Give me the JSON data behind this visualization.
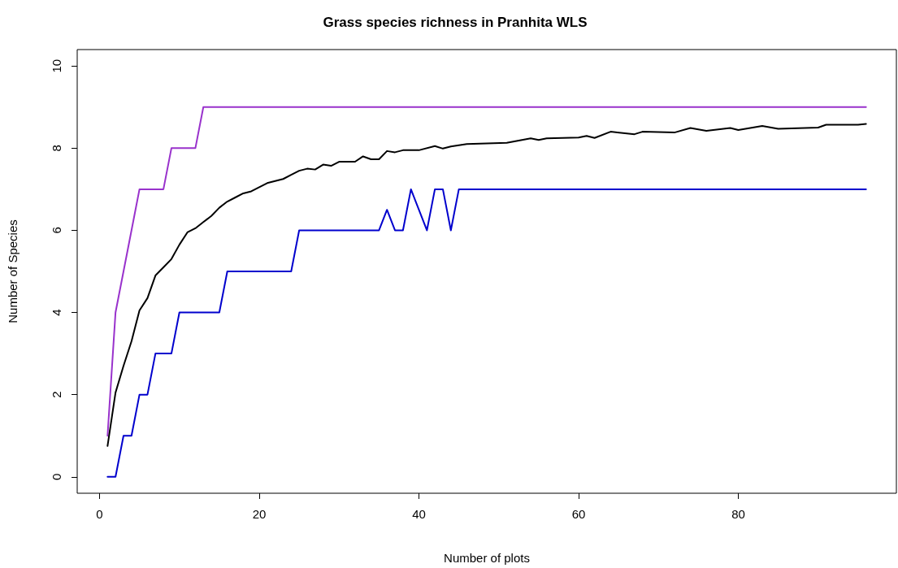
{
  "chart_data": {
    "type": "line",
    "title": "Grass species richness in Pranhita WLS",
    "xlabel": "Number of plots",
    "ylabel": "Number of Species",
    "xlim": [
      -2.8,
      99.8
    ],
    "xticks": [
      0,
      20,
      40,
      60,
      80
    ],
    "ylim": [
      -0.4,
      10.4
    ],
    "yticks": [
      0,
      2,
      4,
      6,
      8,
      10
    ],
    "grid": false,
    "marker": "none",
    "line_style": "solid",
    "series": [
      {
        "color": "#9932cc",
        "x": [
          1,
          2,
          3,
          4,
          5,
          8,
          9,
          12,
          13,
          96
        ],
        "values": [
          1,
          4,
          5,
          6,
          7,
          7,
          8,
          8,
          9,
          9
        ]
      },
      {
        "color": "#000000",
        "x": [
          1,
          2,
          3,
          4,
          5,
          6,
          7,
          8,
          9,
          10,
          11,
          12,
          13,
          14,
          15,
          16,
          17,
          18,
          19,
          20,
          21,
          22,
          23,
          24,
          25,
          26,
          27,
          28,
          29,
          30,
          32,
          33,
          34,
          35,
          36,
          37,
          38,
          40,
          42,
          43,
          44,
          46,
          51,
          54,
          55,
          56,
          60,
          61,
          62,
          64,
          67,
          68,
          72,
          74,
          76,
          79,
          80,
          83,
          85,
          90,
          91,
          95,
          96
        ],
        "values": [
          0.75,
          2.05,
          2.7,
          3.3,
          4.05,
          4.35,
          4.9,
          5.1,
          5.3,
          5.65,
          5.95,
          6.05,
          6.2,
          6.35,
          6.55,
          6.7,
          6.8,
          6.9,
          6.95,
          7.05,
          7.15,
          7.2,
          7.25,
          7.35,
          7.45,
          7.5,
          7.48,
          7.6,
          7.57,
          7.67,
          7.67,
          7.8,
          7.73,
          7.73,
          7.93,
          7.9,
          7.95,
          7.95,
          8.05,
          7.99,
          8.04,
          8.1,
          8.13,
          8.24,
          8.2,
          8.24,
          8.26,
          8.3,
          8.25,
          8.4,
          8.34,
          8.4,
          8.38,
          8.49,
          8.42,
          8.49,
          8.44,
          8.54,
          8.47,
          8.5,
          8.57,
          8.57,
          8.59
        ]
      },
      {
        "color": "#0000cd",
        "x": [
          1,
          2,
          3,
          4,
          5,
          6,
          7,
          9,
          10,
          15,
          16,
          24,
          25,
          35,
          36,
          37,
          38,
          39,
          41,
          42,
          43,
          44,
          45,
          96
        ],
        "values": [
          0,
          0,
          1,
          1,
          2,
          2,
          3,
          3,
          4,
          4,
          5,
          5,
          6,
          6,
          6.5,
          6,
          6,
          7,
          6,
          7,
          7,
          6,
          7,
          7
        ]
      }
    ]
  }
}
